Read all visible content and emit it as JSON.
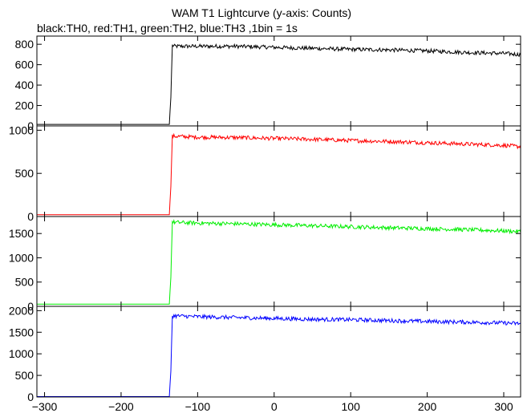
{
  "chart_data": [
    {
      "type": "line",
      "title": "WAM T1 Lightcurve (y-axis: Counts)",
      "subtitle": "black:TH0, red:TH1, green:TH2, blue:TH3 ,1bin = 1s",
      "xlabel": "",
      "ylabel": "Counts",
      "xlim": [
        -310,
        322
      ],
      "grid": false,
      "panels": [
        {
          "name": "TH0",
          "color": "#000000",
          "ylim": [
            0,
            880
          ],
          "yticks": [
            0,
            200,
            400,
            600,
            800
          ],
          "ytick_labels": [
            "0",
            "200",
            "400",
            "600",
            "800"
          ],
          "series": [
            {
              "name": "TH0",
              "x": [
                -310,
                -137,
                -135,
                -133,
                -130,
                -100,
                -50,
                0,
                50,
                100,
                150,
                200,
                250,
                300,
                320
              ],
              "y": [
                15,
                15,
                280,
                790,
                780,
                780,
                780,
                770,
                760,
                750,
                745,
                735,
                720,
                710,
                700
              ]
            }
          ]
        },
        {
          "name": "TH1",
          "color": "#ff0000",
          "ylim": [
            0,
            1050
          ],
          "yticks": [
            0,
            500,
            1000
          ],
          "ytick_labels": [
            "0",
            "500",
            "1000"
          ],
          "series": [
            {
              "name": "TH1",
              "x": [
                -310,
                -137,
                -135,
                -133,
                -130,
                -100,
                -50,
                0,
                50,
                100,
                150,
                200,
                250,
                300,
                320
              ],
              "y": [
                20,
                20,
                350,
                930,
                930,
                920,
                915,
                905,
                895,
                880,
                870,
                855,
                840,
                825,
                810
              ]
            }
          ]
        },
        {
          "name": "TH2",
          "color": "#00ee00",
          "ylim": [
            0,
            1850
          ],
          "yticks": [
            0,
            500,
            1000,
            1500
          ],
          "ytick_labels": [
            "0",
            "500",
            "1000",
            "1500"
          ],
          "series": [
            {
              "name": "TH2",
              "x": [
                -310,
                -137,
                -135,
                -133,
                -130,
                -100,
                -50,
                0,
                50,
                100,
                150,
                200,
                250,
                300,
                320
              ],
              "y": [
                45,
                45,
                600,
                1740,
                1730,
                1715,
                1700,
                1680,
                1660,
                1640,
                1620,
                1600,
                1580,
                1555,
                1540
              ]
            }
          ]
        },
        {
          "name": "TH3",
          "color": "#0000ff",
          "ylim": [
            0,
            2100
          ],
          "yticks": [
            0,
            500,
            1000,
            1500,
            2000
          ],
          "ytick_labels": [
            "0",
            "500",
            "1000",
            "1500",
            "2000"
          ],
          "series": [
            {
              "name": "TH3",
              "x": [
                -310,
                -137,
                -135,
                -133,
                -130,
                -100,
                -50,
                0,
                50,
                100,
                150,
                200,
                250,
                300,
                320
              ],
              "y": [
                10,
                10,
                600,
                1880,
                1880,
                1860,
                1840,
                1820,
                1800,
                1790,
                1770,
                1750,
                1735,
                1715,
                1700
              ]
            }
          ]
        }
      ],
      "xticks": [
        -300,
        -200,
        -100,
        0,
        100,
        200,
        300
      ],
      "xtick_labels": [
        "−300",
        "−200",
        "−100",
        "0",
        "100",
        "200",
        "300"
      ]
    }
  ]
}
